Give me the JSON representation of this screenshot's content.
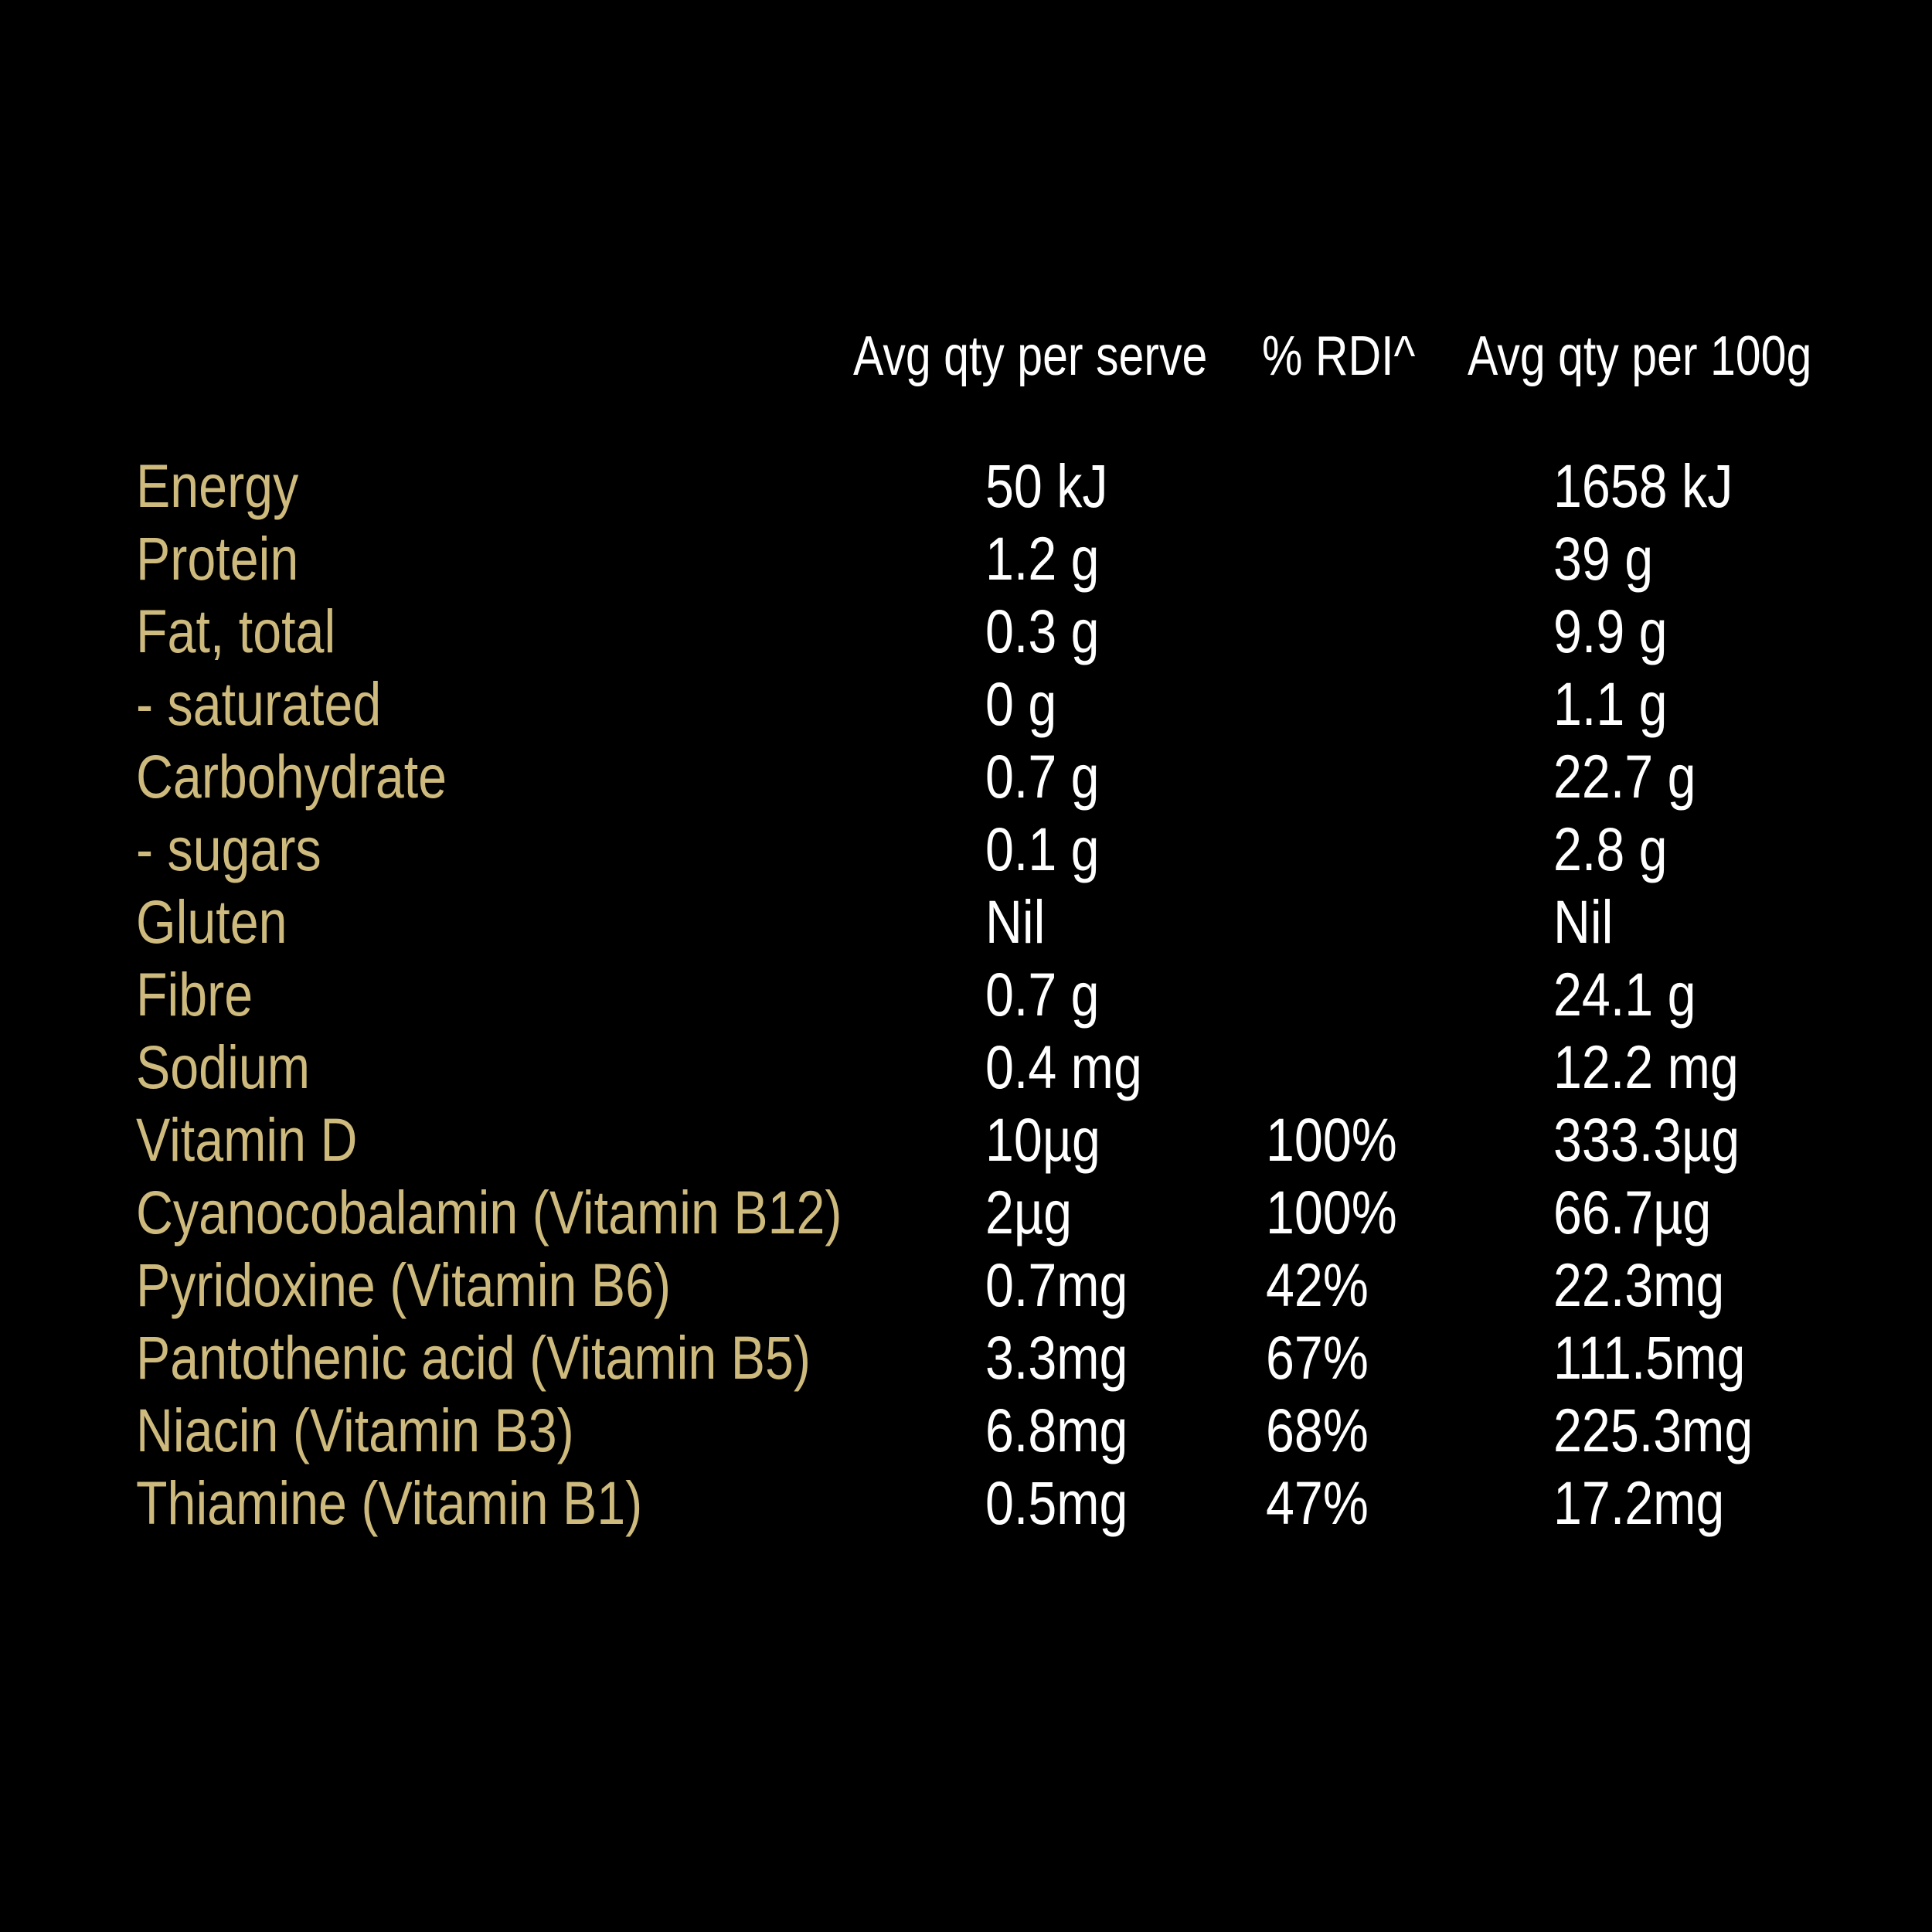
{
  "panel": {
    "background_color": "#000000",
    "label_color": "#cdba7c",
    "value_color": "#ffffff",
    "columns": {
      "serve": "Avg qty per serve",
      "rdi": "% RDI^",
      "per100g": "Avg qty per 100g"
    },
    "rows": [
      {
        "label": "Energy",
        "serve": "50 kJ",
        "rdi": "",
        "per100g": "1658 kJ"
      },
      {
        "label": "Protein",
        "serve": "1.2 g",
        "rdi": "",
        "per100g": "39 g"
      },
      {
        "label": "Fat, total",
        "serve": "0.3 g",
        "rdi": "",
        "per100g": "9.9 g"
      },
      {
        "label": "- saturated",
        "serve": "0 g",
        "rdi": "",
        "per100g": "1.1 g"
      },
      {
        "label": "Carbohydrate",
        "serve": "0.7 g",
        "rdi": "",
        "per100g": "22.7 g"
      },
      {
        "label": "- sugars",
        "serve": "0.1 g",
        "rdi": "",
        "per100g": "2.8 g"
      },
      {
        "label": "Gluten",
        "serve": "Nil",
        "rdi": "",
        "per100g": "Nil"
      },
      {
        "label": "Fibre",
        "serve": "0.7 g",
        "rdi": "",
        "per100g": "24.1 g"
      },
      {
        "label": "Sodium",
        "serve": "0.4 mg",
        "rdi": "",
        "per100g": "12.2 mg"
      },
      {
        "label": "Vitamin D",
        "serve": "10µg",
        "rdi": "100%",
        "per100g": "333.3µg"
      },
      {
        "label": "Cyanocobalamin (Vitamin B12)",
        "serve": "2µg",
        "rdi": "100%",
        "per100g": "66.7µg"
      },
      {
        "label": "Pyridoxine (Vitamin B6)",
        "serve": "0.7mg",
        "rdi": "42%",
        "per100g": "22.3mg"
      },
      {
        "label": "Pantothenic acid (Vitamin B5)",
        "serve": "3.3mg",
        "rdi": "67%",
        "per100g": "111.5mg"
      },
      {
        "label": "Niacin (Vitamin B3)",
        "serve": "6.8mg",
        "rdi": "68%",
        "per100g": "225.3mg"
      },
      {
        "label": "Thiamine (Vitamin B1)",
        "serve": "0.5mg",
        "rdi": "47%",
        "per100g": "17.2mg"
      }
    ]
  }
}
